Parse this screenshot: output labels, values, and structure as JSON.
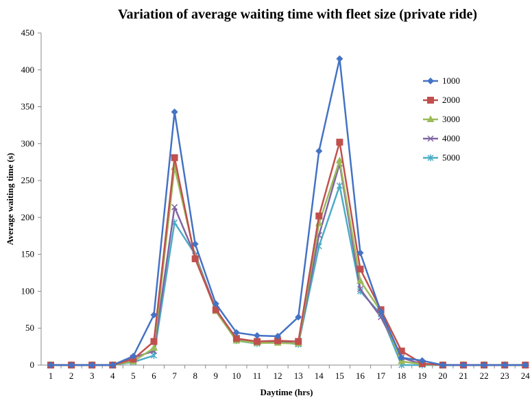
{
  "chart_data": {
    "type": "line",
    "title": "Variation of average waiting time with fleet size (private ride)",
    "xlabel": "Daytime (hrs)",
    "ylabel": "Average waiting time (s)",
    "x": [
      1,
      2,
      3,
      4,
      5,
      6,
      7,
      8,
      9,
      10,
      11,
      12,
      13,
      14,
      15,
      16,
      17,
      18,
      19,
      20,
      21,
      22,
      23,
      24
    ],
    "ylim": [
      0,
      450
    ],
    "yticks": [
      0,
      50,
      100,
      150,
      200,
      250,
      300,
      350,
      400,
      450
    ],
    "legend_position": "right",
    "series": [
      {
        "name": "1000",
        "color": "#4472C4",
        "marker": "diamond",
        "values": [
          0,
          0,
          0,
          0,
          12,
          68,
          343,
          164,
          83,
          44,
          40,
          39,
          65,
          290,
          415,
          152,
          72,
          10,
          6,
          0,
          0,
          0,
          0,
          0
        ]
      },
      {
        "name": "2000",
        "color": "#C0504D",
        "marker": "square",
        "values": [
          0,
          0,
          0,
          0,
          8,
          32,
          281,
          144,
          75,
          36,
          32,
          33,
          32,
          202,
          302,
          130,
          75,
          19,
          2,
          0,
          0,
          0,
          0,
          0
        ]
      },
      {
        "name": "3000",
        "color": "#9BBB59",
        "marker": "triangle",
        "values": [
          0,
          0,
          0,
          0,
          5,
          23,
          268,
          147,
          73,
          33,
          30,
          30,
          29,
          192,
          277,
          114,
          73,
          5,
          1,
          0,
          0,
          0,
          0,
          0
        ]
      },
      {
        "name": "4000",
        "color": "#8064A2",
        "marker": "x",
        "values": [
          0,
          0,
          0,
          0,
          10,
          19,
          214,
          148,
          76,
          35,
          31,
          32,
          29,
          176,
          273,
          103,
          65,
          10,
          1,
          0,
          0,
          0,
          0,
          0
        ]
      },
      {
        "name": "5000",
        "color": "#4BACC6",
        "marker": "star",
        "values": [
          0,
          0,
          0,
          0,
          4,
          13,
          193,
          150,
          75,
          33,
          29,
          32,
          28,
          161,
          243,
          100,
          69,
          0,
          0,
          0,
          0,
          0,
          0,
          0
        ]
      }
    ]
  }
}
